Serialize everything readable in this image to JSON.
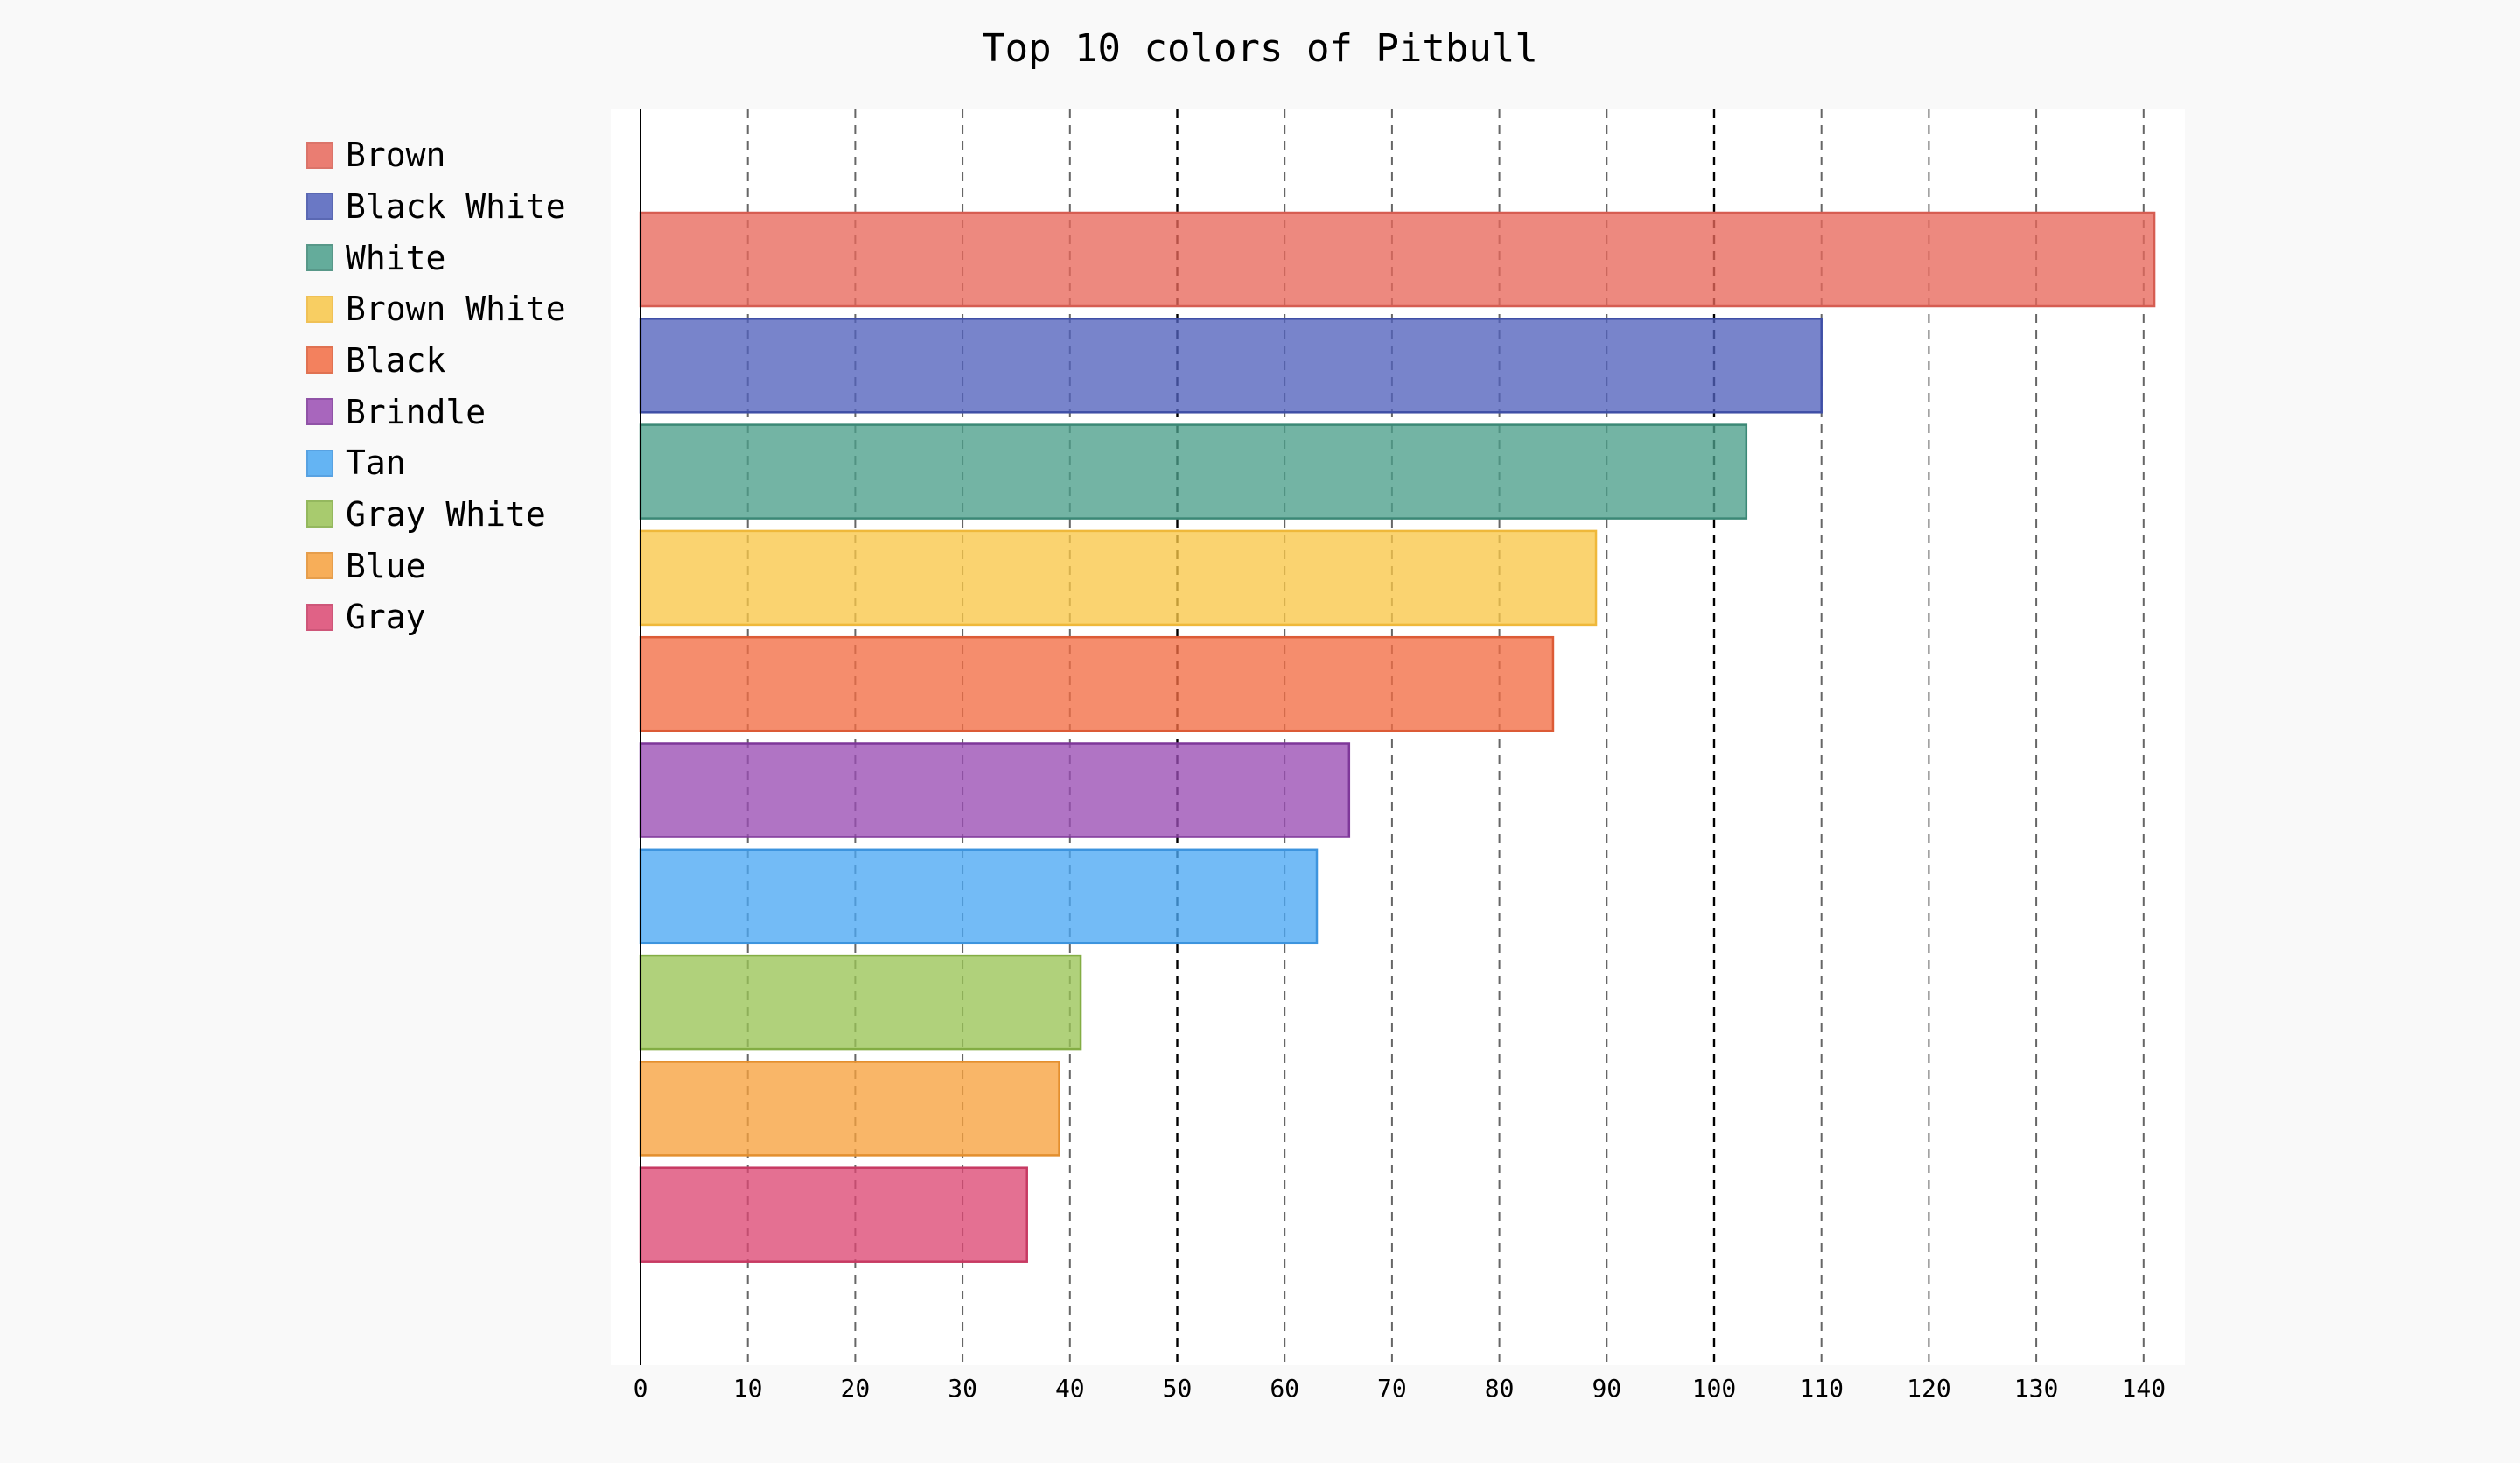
{
  "chart_data": {
    "type": "bar",
    "orientation": "horizontal",
    "title": "Top 10 colors of Pitbull",
    "xlabel": "",
    "ylabel": "",
    "xlim": [
      0,
      141
    ],
    "xticks": [
      0,
      10,
      20,
      30,
      40,
      50,
      60,
      70,
      80,
      90,
      100,
      110,
      120,
      130,
      140
    ],
    "major_ticks": [
      0,
      50,
      100
    ],
    "grid": "vertical-dashed",
    "legend_placement": "left",
    "categories": [
      "Brown",
      "Black White",
      "White",
      "Brown White",
      "Black",
      "Brindle",
      "Tan",
      "Gray White",
      "Blue",
      "Gray"
    ],
    "values": [
      141,
      110,
      103,
      89,
      85,
      66,
      63,
      41,
      39,
      36
    ],
    "colors": [
      "#E8685B",
      "#5262BC",
      "#4B9F8B",
      "#F8C748",
      "#F26D44",
      "#9A4DB3",
      "#4BA8F3",
      "#9AC456",
      "#F7A23E",
      "#DC4873"
    ],
    "edge_colors": [
      "#D65D52",
      "#3F4FA7",
      "#3C8876",
      "#EFB83A",
      "#DC5B36",
      "#7E3799",
      "#3D94DE",
      "#83AD44",
      "#E38F2E",
      "#C73A63"
    ]
  }
}
